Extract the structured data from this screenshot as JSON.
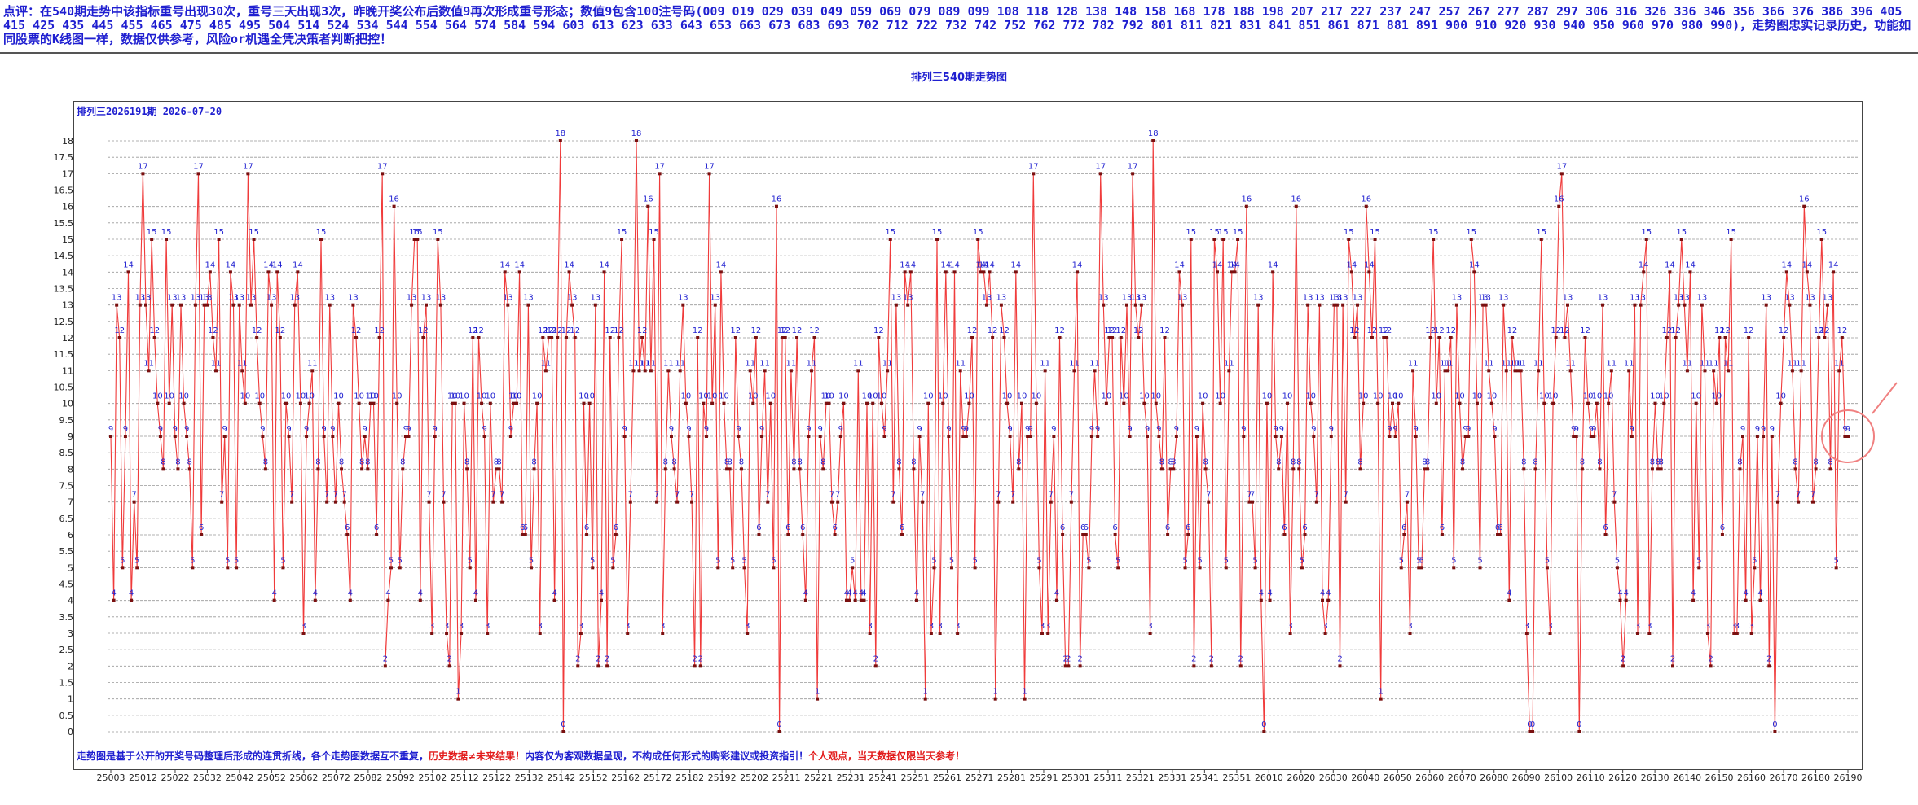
{
  "header": {
    "comment_label": "点评：",
    "comment_text": "在540期走势中该指标重号出现30次，重号三天出现3次，昨晚开奖公布后数值9再次形成重号形态；数值9包含100注号码(009 019 029 039 049 059 069 079 089 099 108 118 128 138 148 158 168 178 188 198 207 217 227 237 247 257 267 277 287 297 306 316 326 336 346 356 366 376 386 396 405 415 425 435 445 455 465 475 485 495 504 514 524 534 544 554 564 574 584 594 603 613 623 633 643 653 663 673 683 693 702 712 722 732 742 752 762 772 782 792 801 811 821 831 841 851 861 871 881 891 900 910 920 930 940 950 960 970 980 990)，走势图忠实记录历史，功能如同股票的K线图一样，数据仅供参考，风险or机遇全凭决策者判断把控！"
  },
  "chart_title": "排列三540期走势图",
  "period_label": "排列三2026191期 2026-07-20",
  "footnote": {
    "part1": "走势图是基于公开的开奖号码整理后形成的连贯折线，各个走势图数据互不重复，",
    "part2": "历史数据≠未来结果！",
    "part3": "内容仅为客观数据呈现，不构成任何形式的购彩建议或投资指引！",
    "part4": "个人观点，当天数据仅限当天参考！"
  },
  "colors": {
    "line": "#f03b3b",
    "point": "#7a1010",
    "label": "#1f1fd0",
    "badge_red": "#f07070",
    "badge_blue": "#7a7af0",
    "grid": "#999999"
  },
  "chart_data": {
    "type": "line",
    "title": "排列三540期走势图",
    "ylim": [
      0,
      18
    ],
    "y_ticks": [
      "0",
      "0.5",
      "1",
      "1.5",
      "2",
      "2.5",
      "3",
      "3.5",
      "4",
      "4.5",
      "5",
      "5.5",
      "6",
      "6.5",
      "7",
      "7.5",
      "8",
      "8.5",
      "9",
      "9.5",
      "10",
      "10.5",
      "11",
      "11.5",
      "12",
      "12.5",
      "13",
      "13.5",
      "14",
      "14.5",
      "15",
      "15.5",
      "16",
      "16.5",
      "17",
      "17.5",
      "18"
    ],
    "x_tick_labels": [
      "25003",
      "25012",
      "25022",
      "25032",
      "25042",
      "25052",
      "25062",
      "25072",
      "25082",
      "25092",
      "25102",
      "25112",
      "25122",
      "25132",
      "25142",
      "25152",
      "25162",
      "25172",
      "25182",
      "25192",
      "25202",
      "25211",
      "25221",
      "25231",
      "25241",
      "25251",
      "25261",
      "25271",
      "25281",
      "25291",
      "25301",
      "25311",
      "25321",
      "25331",
      "25341",
      "25351",
      "26010",
      "26020",
      "26030",
      "26040",
      "26050",
      "26060",
      "26070",
      "26080",
      "26090",
      "26100",
      "26110",
      "26120",
      "26130",
      "26140",
      "26150",
      "26160",
      "26170",
      "26180",
      "26190"
    ],
    "grid": true,
    "values": [
      9,
      4,
      13,
      12,
      5,
      9,
      14,
      4,
      7,
      5,
      13,
      17,
      13,
      11,
      15,
      12,
      10,
      9,
      8,
      15,
      10,
      13,
      9,
      8,
      13,
      10,
      9,
      8,
      5,
      13,
      17,
      6,
      13,
      13,
      14,
      12,
      11,
      15,
      7,
      9,
      5,
      14,
      13,
      5,
      13,
      11,
      10,
      17,
      13,
      15,
      12,
      10,
      9,
      8,
      14,
      13,
      4,
      14,
      12,
      5,
      10,
      9,
      7,
      13,
      14,
      10,
      3,
      9,
      10,
      11,
      4,
      8,
      15,
      9,
      7,
      13,
      9,
      7,
      10,
      8,
      7,
      6,
      4,
      13,
      12,
      10,
      8,
      9,
      8,
      10,
      10,
      6,
      12,
      17,
      2,
      4,
      5,
      16,
      10,
      5,
      8,
      9,
      9,
      13,
      15,
      15,
      4,
      12,
      13,
      7,
      3,
      9,
      15,
      13,
      7,
      3,
      2,
      10,
      10,
      1,
      3,
      10,
      8,
      5,
      12,
      4,
      12,
      10,
      9,
      3,
      10,
      7,
      8,
      8,
      7,
      14,
      13,
      9,
      10,
      10,
      14,
      6,
      6,
      13,
      5,
      8,
      10,
      3,
      12,
      11,
      12,
      12,
      4,
      12,
      18,
      0,
      12,
      14,
      13,
      12,
      2,
      3,
      10,
      6,
      10,
      5,
      13,
      2,
      4,
      14,
      2,
      12,
      5,
      6,
      12,
      15,
      9,
      3,
      7,
      11,
      18,
      11,
      12,
      11,
      16,
      11,
      15,
      7,
      17,
      3,
      8,
      11,
      9,
      8,
      7,
      11,
      13,
      10,
      9,
      7,
      2,
      12,
      2,
      10,
      9,
      17,
      10,
      13,
      5,
      14,
      10,
      8,
      8,
      5,
      12,
      9,
      8,
      5,
      3,
      11,
      10,
      12,
      6,
      9,
      11,
      7,
      10,
      5,
      16,
      0,
      12,
      12,
      6,
      11,
      8,
      12,
      8,
      6,
      4,
      9,
      11,
      12,
      1,
      9,
      8,
      10,
      10,
      7,
      6,
      7,
      9,
      10,
      4,
      4,
      5,
      4,
      11,
      4,
      4,
      10,
      3,
      10,
      2,
      12,
      10,
      9,
      11,
      15,
      7,
      13,
      8,
      6,
      14,
      13,
      14,
      8,
      4,
      9,
      7,
      1,
      10,
      3,
      5,
      15,
      3,
      10,
      14,
      9,
      5,
      14,
      3,
      11,
      9,
      9,
      10,
      12,
      5,
      15,
      14,
      14,
      13,
      14,
      12,
      1,
      7,
      13,
      12,
      10,
      9,
      7,
      14,
      8,
      10,
      1,
      9,
      9,
      17,
      10,
      5,
      3,
      11,
      3,
      7,
      9,
      4,
      12,
      6,
      2,
      2,
      7,
      11,
      14,
      2,
      6,
      6,
      5,
      9,
      11,
      9,
      17,
      13,
      10,
      12,
      12,
      6,
      5,
      12,
      10,
      13,
      9,
      17,
      13,
      12,
      13,
      10,
      9,
      3,
      18,
      10,
      9,
      8,
      12,
      6,
      8,
      8,
      9,
      14,
      13,
      5,
      6,
      15,
      2,
      9,
      5,
      10,
      8,
      7,
      2,
      15,
      14,
      10,
      15,
      5,
      11,
      14,
      14,
      15,
      2,
      9,
      16,
      7,
      7,
      5,
      13,
      4,
      0,
      10,
      4,
      14,
      9,
      8,
      9,
      6,
      10,
      3,
      8,
      16,
      8,
      5,
      6,
      13,
      10,
      9,
      7,
      13,
      4,
      3,
      4,
      9,
      13,
      13,
      2,
      13,
      7,
      15,
      14,
      12,
      13,
      8,
      10,
      16,
      14,
      12,
      15,
      10,
      1,
      12,
      12,
      9,
      10,
      9,
      10,
      5,
      6,
      7,
      3,
      11,
      9,
      5,
      5,
      8,
      8,
      12,
      15,
      10,
      12,
      6,
      11,
      11,
      12,
      5,
      13,
      10,
      8,
      9,
      9,
      15,
      14,
      10,
      5,
      13,
      13,
      11,
      10,
      9,
      6,
      6,
      13,
      11,
      4,
      12,
      11,
      11,
      11,
      8,
      3,
      0,
      0,
      8,
      11,
      15,
      10,
      5,
      3,
      10,
      12,
      16,
      17,
      12,
      13,
      11,
      9,
      9,
      0,
      8,
      12,
      10,
      9,
      9,
      10,
      8,
      13,
      6,
      10,
      11,
      7,
      5,
      4,
      2,
      4,
      11,
      9,
      13,
      3,
      13,
      14,
      15,
      3,
      8,
      10,
      8,
      8,
      10,
      12,
      14,
      2,
      12,
      13,
      15,
      13,
      11,
      14,
      4,
      10,
      5,
      13,
      11,
      3,
      2,
      11,
      10,
      12,
      6,
      12,
      11,
      15,
      3,
      3,
      8,
      9,
      4,
      12,
      3,
      5,
      9,
      4,
      9,
      13,
      2,
      9,
      0,
      7,
      10,
      12,
      14,
      13,
      11,
      8,
      7,
      11,
      16,
      14,
      13,
      7,
      8,
      12,
      15,
      12,
      13,
      8,
      14,
      5,
      11,
      12,
      9,
      9
    ]
  }
}
